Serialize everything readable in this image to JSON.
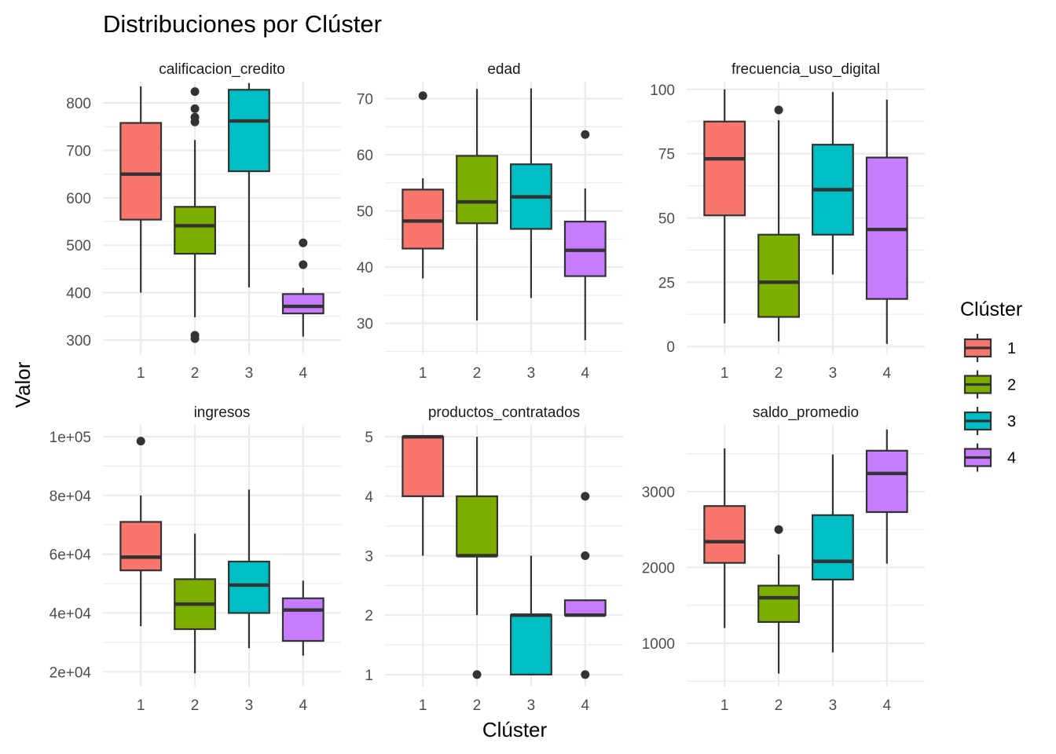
{
  "title": "Distribuciones por Clúster",
  "xlabel": "Clúster",
  "ylabel": "Valor",
  "legend": {
    "title": "Clúster",
    "position": "right",
    "items": [
      {
        "label": "1",
        "color": "#F8766D"
      },
      {
        "label": "2",
        "color": "#7CAE00"
      },
      {
        "label": "3",
        "color": "#00BFC4"
      },
      {
        "label": "4",
        "color": "#C77CFF"
      }
    ]
  },
  "chart_data": [
    {
      "type": "boxplot",
      "title": "calificacion_credito",
      "categories": [
        "1",
        "2",
        "3",
        "4"
      ],
      "ylim": [
        270,
        845
      ],
      "yticks": [
        300,
        400,
        500,
        600,
        700,
        800
      ],
      "yticklabels": [
        "300",
        "400",
        "500",
        "600",
        "700",
        "800"
      ],
      "yminor": [
        350,
        450,
        550,
        650,
        750
      ],
      "boxes": [
        {
          "cluster": "1",
          "lower_whisker": 400,
          "q1": 554,
          "median": 650,
          "q3": 758,
          "upper_whisker": 835,
          "outliers": []
        },
        {
          "cluster": "2",
          "lower_whisker": 348,
          "q1": 482,
          "median": 541,
          "q3": 581,
          "upper_whisker": 722,
          "outliers": [
            824,
            788,
            770,
            760,
            310,
            303
          ]
        },
        {
          "cluster": "3",
          "lower_whisker": 411,
          "q1": 656,
          "median": 762,
          "q3": 828,
          "upper_whisker": 842,
          "outliers": []
        },
        {
          "cluster": "4",
          "lower_whisker": 307,
          "q1": 356,
          "median": 371,
          "q3": 397,
          "upper_whisker": 410,
          "outliers": [
            505,
            459
          ]
        }
      ]
    },
    {
      "type": "boxplot",
      "title": "edad",
      "categories": [
        "1",
        "2",
        "3",
        "4"
      ],
      "ylim": [
        24.5,
        73
      ],
      "yticks": [
        30,
        40,
        50,
        60,
        70
      ],
      "yticklabels": [
        "30",
        "40",
        "50",
        "60",
        "70"
      ],
      "yminor": [
        25,
        35,
        45,
        55,
        65
      ],
      "boxes": [
        {
          "cluster": "1",
          "lower_whisker": 38,
          "q1": 43.3,
          "median": 48.2,
          "q3": 53.8,
          "upper_whisker": 55.8,
          "outliers": [
            70.5
          ]
        },
        {
          "cluster": "2",
          "lower_whisker": 30.5,
          "q1": 47.8,
          "median": 51.6,
          "q3": 59.8,
          "upper_whisker": 71.7,
          "outliers": []
        },
        {
          "cluster": "3",
          "lower_whisker": 34.5,
          "q1": 46.8,
          "median": 52.5,
          "q3": 58.3,
          "upper_whisker": 71.8,
          "outliers": []
        },
        {
          "cluster": "4",
          "lower_whisker": 27,
          "q1": 38.4,
          "median": 43,
          "q3": 48.1,
          "upper_whisker": 54,
          "outliers": [
            63.6
          ]
        }
      ]
    },
    {
      "type": "boxplot",
      "title": "frecuencia_uso_digital",
      "categories": [
        "1",
        "2",
        "3",
        "4"
      ],
      "ylim": [
        -3,
        103
      ],
      "yticks": [
        0,
        25,
        50,
        75,
        100
      ],
      "yticklabels": [
        "0",
        "25",
        "50",
        "75",
        "100"
      ],
      "yminor": [
        12.5,
        37.5,
        62.5,
        87.5
      ],
      "boxes": [
        {
          "cluster": "1",
          "lower_whisker": 9,
          "q1": 51,
          "median": 73,
          "q3": 87.5,
          "upper_whisker": 100,
          "outliers": []
        },
        {
          "cluster": "2",
          "lower_whisker": 2,
          "q1": 11.5,
          "median": 25,
          "q3": 43.5,
          "upper_whisker": 88,
          "outliers": [
            92
          ]
        },
        {
          "cluster": "3",
          "lower_whisker": 28,
          "q1": 43.5,
          "median": 61,
          "q3": 78.5,
          "upper_whisker": 99,
          "outliers": []
        },
        {
          "cluster": "4",
          "lower_whisker": 1,
          "q1": 18.5,
          "median": 45.5,
          "q3": 73.5,
          "upper_whisker": 96,
          "outliers": []
        }
      ]
    },
    {
      "type": "boxplot",
      "title": "ingresos",
      "categories": [
        "1",
        "2",
        "3",
        "4"
      ],
      "ylim": [
        15000,
        104000
      ],
      "yticks": [
        20000,
        40000,
        60000,
        80000,
        100000
      ],
      "yticklabels": [
        "2e+04",
        "4e+04",
        "6e+04",
        "8e+04",
        "1e+05"
      ],
      "yminor": [
        30000,
        50000,
        70000,
        90000
      ],
      "boxes": [
        {
          "cluster": "1",
          "lower_whisker": 35500,
          "q1": 54500,
          "median": 59000,
          "q3": 71000,
          "upper_whisker": 80000,
          "outliers": [
            98500
          ]
        },
        {
          "cluster": "2",
          "lower_whisker": 19500,
          "q1": 34500,
          "median": 43000,
          "q3": 51500,
          "upper_whisker": 67000,
          "outliers": []
        },
        {
          "cluster": "3",
          "lower_whisker": 28000,
          "q1": 40000,
          "median": 49500,
          "q3": 57500,
          "upper_whisker": 82000,
          "outliers": []
        },
        {
          "cluster": "4",
          "lower_whisker": 25500,
          "q1": 30500,
          "median": 41000,
          "q3": 45000,
          "upper_whisker": 51000,
          "outliers": []
        }
      ]
    },
    {
      "type": "boxplot",
      "title": "productos_contratados",
      "categories": [
        "1",
        "2",
        "3",
        "4"
      ],
      "ylim": [
        0.8,
        5.2
      ],
      "yticks": [
        1,
        2,
        3,
        4,
        5
      ],
      "yticklabels": [
        "1",
        "2",
        "3",
        "4",
        "5"
      ],
      "yminor": [
        1.5,
        2.5,
        3.5,
        4.5
      ],
      "boxes": [
        {
          "cluster": "1",
          "lower_whisker": 3,
          "q1": 4,
          "median": 5,
          "q3": 5,
          "upper_whisker": 5,
          "outliers": []
        },
        {
          "cluster": "2",
          "lower_whisker": 2,
          "q1": 3,
          "median": 3,
          "q3": 4,
          "upper_whisker": 5,
          "outliers": [
            1
          ]
        },
        {
          "cluster": "3",
          "lower_whisker": 1,
          "q1": 1,
          "median": 2,
          "q3": 2,
          "upper_whisker": 3,
          "outliers": []
        },
        {
          "cluster": "4",
          "lower_whisker": 2,
          "q1": 2,
          "median": 2,
          "q3": 2.25,
          "upper_whisker": 2.25,
          "outliers": [
            4,
            3,
            1
          ]
        }
      ]
    },
    {
      "type": "boxplot",
      "title": "saldo_promedio",
      "categories": [
        "1",
        "2",
        "3",
        "4"
      ],
      "ylim": [
        430,
        3880
      ],
      "yticks": [
        1000,
        2000,
        3000
      ],
      "yticklabels": [
        "1000",
        "2000",
        "3000"
      ],
      "yminor": [
        500,
        1500,
        2500,
        3500
      ],
      "boxes": [
        {
          "cluster": "1",
          "lower_whisker": 1200,
          "q1": 2060,
          "median": 2340,
          "q3": 2810,
          "upper_whisker": 3570,
          "outliers": []
        },
        {
          "cluster": "2",
          "lower_whisker": 600,
          "q1": 1280,
          "median": 1600,
          "q3": 1760,
          "upper_whisker": 2170,
          "outliers": [
            2500
          ]
        },
        {
          "cluster": "3",
          "lower_whisker": 880,
          "q1": 1840,
          "median": 2080,
          "q3": 2690,
          "upper_whisker": 3490,
          "outliers": []
        },
        {
          "cluster": "4",
          "lower_whisker": 2050,
          "q1": 2730,
          "median": 3240,
          "q3": 3540,
          "upper_whisker": 3820,
          "outliers": []
        }
      ]
    }
  ]
}
